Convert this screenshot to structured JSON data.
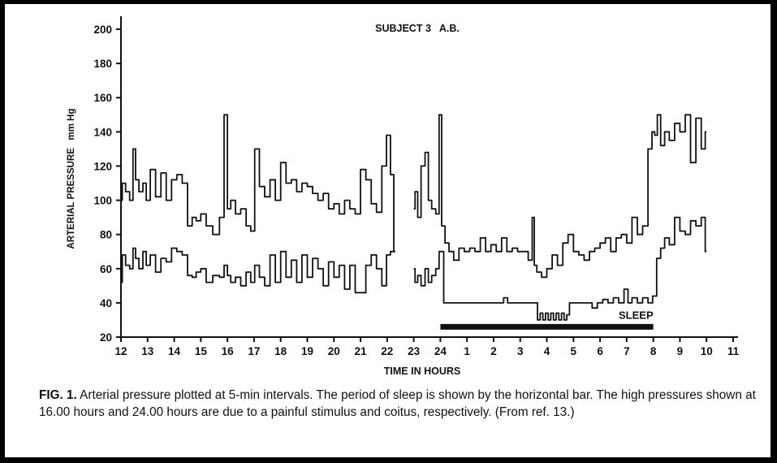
{
  "chart_data": {
    "type": "line",
    "title": "SUBJECT 3   A.B.",
    "xlabel": "TIME IN HOURS",
    "ylabel": "ARTERIAL PRESSURE   mm Hg",
    "ylim": [
      20,
      200
    ],
    "yticks": [
      "20",
      "40",
      "60",
      "80",
      "100",
      "120",
      "140",
      "160",
      "180",
      "200"
    ],
    "xticks": [
      "12",
      "13",
      "14",
      "15",
      "16",
      "17",
      "18",
      "19",
      "20",
      "21",
      "22",
      "23",
      "24",
      "1",
      "2",
      "3",
      "4",
      "5",
      "6",
      "7",
      "8",
      "9",
      "10",
      "11"
    ],
    "grid": false,
    "legend": "none",
    "line_color": "#111111",
    "series": [
      {
        "x": [
          12.0,
          12.1,
          12.25,
          12.4,
          12.5,
          12.6,
          12.75,
          12.9,
          13.0,
          13.2,
          13.4,
          13.6,
          13.8,
          14.0,
          14.2,
          14.4,
          14.6,
          14.75,
          14.9,
          15.1,
          15.3,
          15.6,
          15.8,
          15.95,
          16.05,
          16.2,
          16.4,
          16.6,
          16.8,
          16.95,
          17.1,
          17.3,
          17.5,
          17.7,
          17.9,
          18.1,
          18.3,
          18.5,
          18.7,
          18.9,
          19.1,
          19.3,
          19.5,
          19.7,
          19.9,
          20.1,
          20.3,
          20.5,
          20.7,
          20.9,
          21.1,
          21.3,
          21.5,
          21.7,
          21.9,
          22.05,
          22.2,
          22.3
        ],
        "y": [
          100,
          110,
          105,
          100,
          130,
          112,
          105,
          110,
          100,
          118,
          102,
          116,
          100,
          112,
          115,
          110,
          85,
          90,
          88,
          92,
          85,
          80,
          90,
          150,
          95,
          100,
          92,
          95,
          85,
          82,
          130,
          108,
          102,
          112,
          100,
          122,
          110,
          112,
          105,
          110,
          108,
          104,
          100,
          104,
          95,
          98,
          92,
          100,
          95,
          92,
          118,
          112,
          98,
          93,
          120,
          138,
          115,
          70
        ]
      },
      {
        "x": [
          23.0,
          23.1,
          23.2,
          23.35,
          23.5,
          23.6,
          23.75,
          23.9,
          24.0,
          24.1,
          24.25,
          24.4,
          24.6,
          24.8,
          25.0,
          25.2,
          25.4,
          25.6,
          25.8,
          26.0,
          26.2,
          26.4,
          26.6,
          26.8,
          27.0,
          27.2,
          27.4,
          27.5,
          27.55,
          27.7,
          27.9,
          28.1,
          28.3,
          28.5,
          28.7,
          28.9,
          29.1,
          29.3,
          29.5,
          29.7,
          29.9,
          30.1,
          30.3,
          30.5,
          30.7,
          30.9,
          31.1,
          31.3,
          31.5,
          31.7,
          31.9,
          32.0,
          32.1,
          32.2,
          32.35,
          32.5,
          32.7,
          32.9,
          33.1,
          33.3,
          33.5,
          33.7,
          33.9,
          34.0
        ],
        "y": [
          95,
          105,
          90,
          120,
          128,
          100,
          95,
          92,
          150,
          85,
          75,
          70,
          65,
          72,
          70,
          72,
          70,
          78,
          70,
          74,
          70,
          78,
          70,
          72,
          70,
          70,
          65,
          90,
          62,
          58,
          55,
          60,
          68,
          62,
          75,
          80,
          70,
          68,
          65,
          70,
          72,
          75,
          78,
          70,
          78,
          80,
          75,
          90,
          80,
          85,
          130,
          140,
          138,
          150,
          132,
          140,
          135,
          145,
          140,
          150,
          122,
          148,
          130,
          140
        ]
      },
      {
        "x": [
          12.0,
          12.1,
          12.25,
          12.4,
          12.5,
          12.6,
          12.75,
          12.9,
          13.0,
          13.2,
          13.4,
          13.6,
          13.8,
          14.0,
          14.2,
          14.4,
          14.6,
          14.75,
          14.9,
          15.1,
          15.3,
          15.6,
          15.8,
          15.95,
          16.05,
          16.2,
          16.4,
          16.6,
          16.8,
          16.95,
          17.1,
          17.3,
          17.5,
          17.7,
          17.9,
          18.1,
          18.3,
          18.5,
          18.7,
          18.9,
          19.1,
          19.3,
          19.5,
          19.7,
          19.9,
          20.1,
          20.3,
          20.5,
          20.7,
          20.9,
          21.1,
          21.3,
          21.5,
          21.7,
          21.9,
          22.05,
          22.2,
          22.3
        ],
        "y": [
          52,
          68,
          62,
          60,
          72,
          66,
          60,
          70,
          62,
          68,
          58,
          66,
          64,
          72,
          70,
          68,
          56,
          55,
          58,
          60,
          52,
          56,
          55,
          62,
          56,
          52,
          55,
          50,
          58,
          52,
          62,
          55,
          50,
          68,
          52,
          70,
          55,
          65,
          52,
          68,
          55,
          66,
          60,
          50,
          64,
          55,
          62,
          48,
          62,
          46,
          46,
          62,
          68,
          60,
          50,
          68,
          70,
          70
        ]
      },
      {
        "x": [
          23.0,
          23.1,
          23.2,
          23.35,
          23.5,
          23.6,
          23.75,
          23.9,
          24.0,
          24.1,
          24.15,
          24.3,
          24.5,
          24.8,
          25.1,
          25.4,
          25.7,
          26.0,
          26.3,
          26.45,
          26.6,
          26.8,
          27.1,
          27.4,
          27.6,
          27.7,
          27.8,
          27.9,
          28.0,
          28.1,
          28.2,
          28.3,
          28.4,
          28.5,
          28.6,
          28.7,
          28.8,
          28.9,
          29.0,
          29.3,
          29.6,
          29.8,
          30.0,
          30.2,
          30.4,
          30.6,
          30.8,
          31.0,
          31.1,
          31.3,
          31.5,
          31.7,
          31.9,
          32.05,
          32.2,
          32.35,
          32.5,
          32.7,
          32.9,
          33.1,
          33.3,
          33.5,
          33.7,
          33.9,
          34.0
        ],
        "y": [
          60,
          52,
          56,
          50,
          60,
          52,
          56,
          60,
          70,
          70,
          40,
          40,
          40,
          40,
          40,
          40,
          40,
          40,
          40,
          43,
          40,
          40,
          40,
          40,
          40,
          30,
          34,
          30,
          34,
          30,
          34,
          30,
          34,
          30,
          34,
          30,
          33,
          40,
          40,
          40,
          40,
          37,
          40,
          42,
          40,
          43,
          40,
          48,
          40,
          43,
          40,
          43,
          40,
          44,
          66,
          72,
          78,
          74,
          90,
          82,
          80,
          88,
          85,
          90,
          70
        ]
      }
    ],
    "annotations": [
      {
        "label": "SLEEP",
        "start_hour": 24.0,
        "end_hour": 32.0,
        "y": 26
      }
    ]
  },
  "caption": {
    "label": "FIG. 1.",
    "text": "Arterial pressure plotted at 5-min intervals. The period of sleep is shown by the horizontal bar. The high pressures shown at 16.00 hours and 24.00 hours are due to a painful stimulus and coitus, respectively. (From ref. 13.)"
  }
}
